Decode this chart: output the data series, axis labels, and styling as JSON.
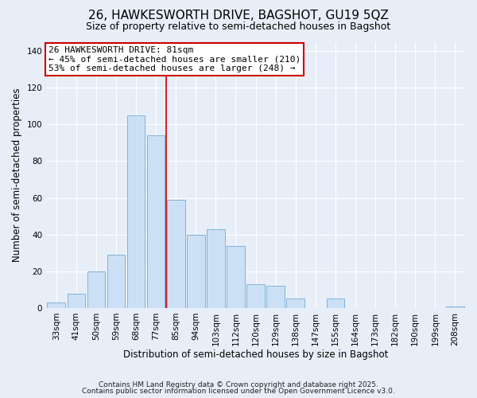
{
  "title": "26, HAWKESWORTH DRIVE, BAGSHOT, GU19 5QZ",
  "subtitle": "Size of property relative to semi-detached houses in Bagshot",
  "xlabel": "Distribution of semi-detached houses by size in Bagshot",
  "ylabel": "Number of semi-detached properties",
  "categories": [
    "33sqm",
    "41sqm",
    "50sqm",
    "59sqm",
    "68sqm",
    "77sqm",
    "85sqm",
    "94sqm",
    "103sqm",
    "112sqm",
    "120sqm",
    "129sqm",
    "138sqm",
    "147sqm",
    "155sqm",
    "164sqm",
    "173sqm",
    "182sqm",
    "190sqm",
    "199sqm",
    "208sqm"
  ],
  "values": [
    3,
    8,
    20,
    29,
    105,
    94,
    59,
    40,
    43,
    34,
    13,
    12,
    5,
    0,
    5,
    0,
    0,
    0,
    0,
    0,
    1
  ],
  "bar_color": "#cce0f5",
  "bar_edge_color": "#7fb3d9",
  "vline_x_index": 5.5,
  "vline_color": "#cc0000",
  "ylim": [
    0,
    145
  ],
  "yticks": [
    0,
    20,
    40,
    60,
    80,
    100,
    120,
    140
  ],
  "annotation_title": "26 HAWKESWORTH DRIVE: 81sqm",
  "annotation_line1": "← 45% of semi-detached houses are smaller (210)",
  "annotation_line2": "53% of semi-detached houses are larger (248) →",
  "annotation_box_color": "#ffffff",
  "annotation_box_edge_color": "#cc0000",
  "footer1": "Contains HM Land Registry data © Crown copyright and database right 2025.",
  "footer2": "Contains public sector information licensed under the Open Government Licence v3.0.",
  "background_color": "#e8eef8",
  "grid_color": "#ffffff",
  "title_fontsize": 11,
  "subtitle_fontsize": 9,
  "axis_label_fontsize": 8.5,
  "tick_fontsize": 7.5,
  "annotation_fontsize": 8,
  "footer_fontsize": 6.5
}
